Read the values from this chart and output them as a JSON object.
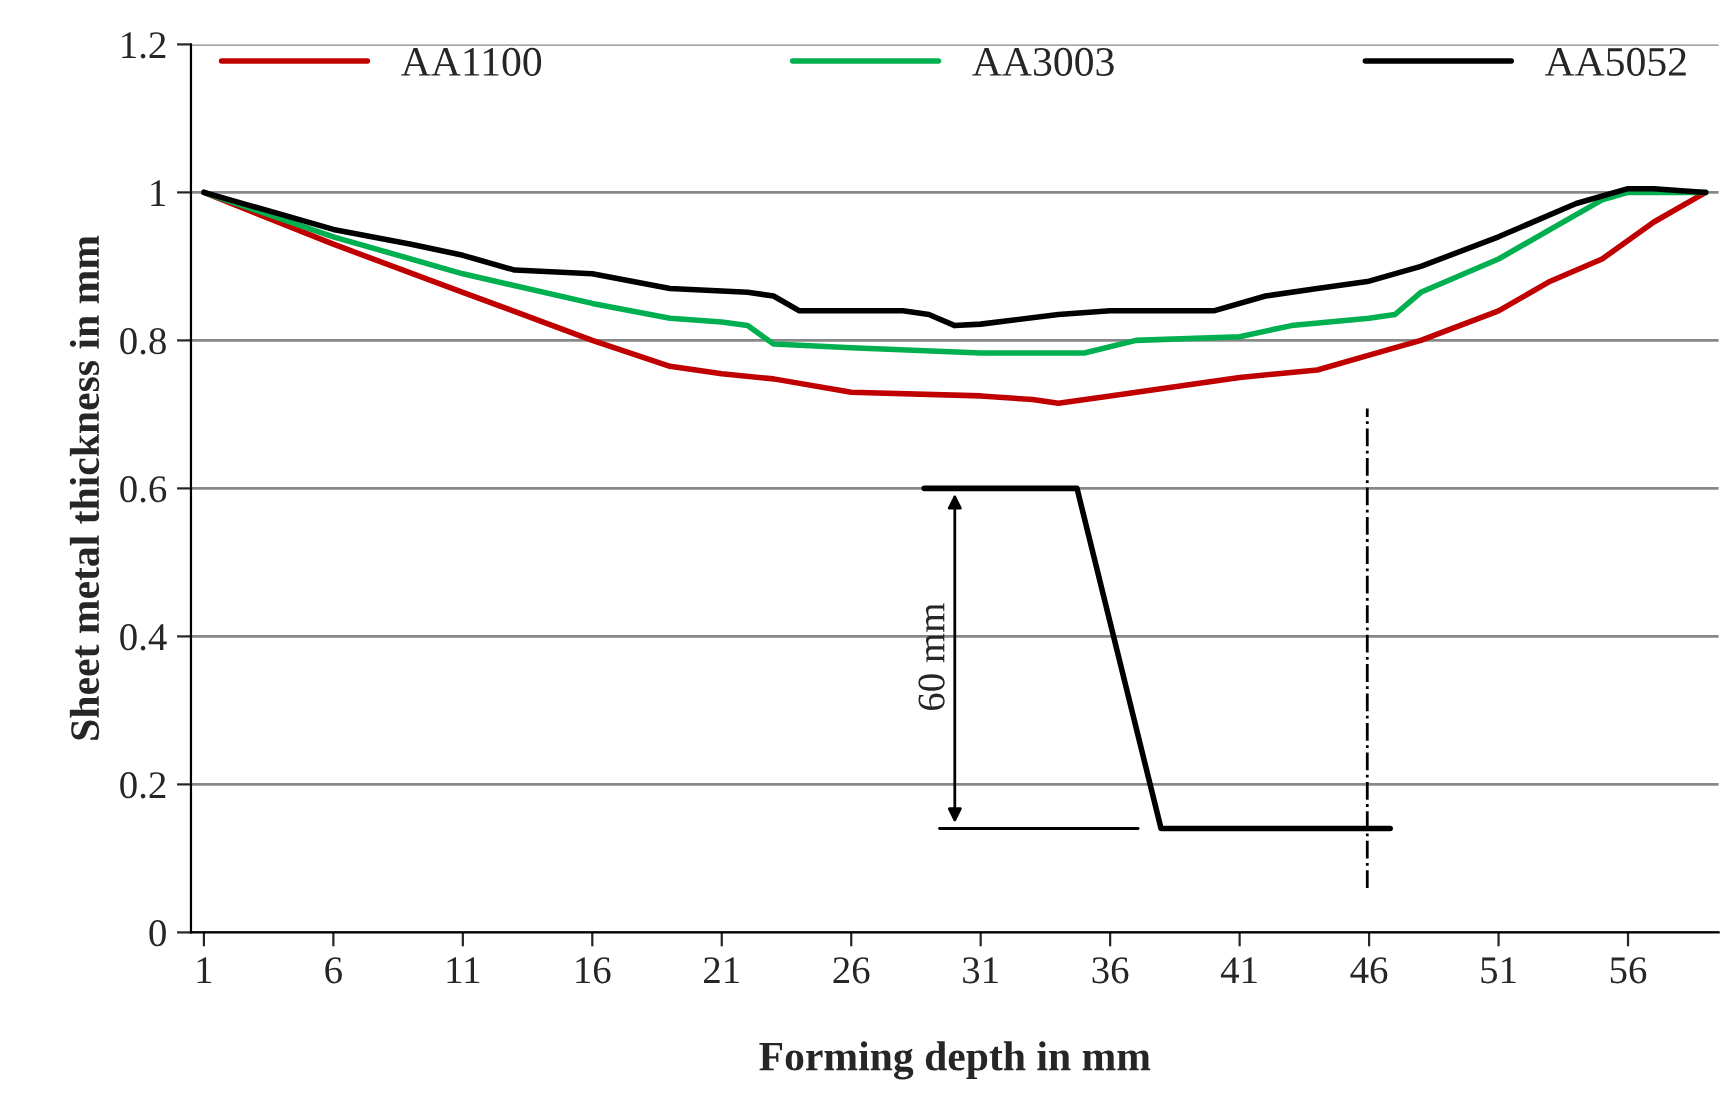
{
  "chart_data": {
    "type": "line",
    "xlabel": "Forming depth in mm",
    "ylabel": "Sheet metal thickness in mm",
    "xlim": [
      0.5,
      59.5
    ],
    "xticks": [
      1,
      6,
      11,
      16,
      21,
      26,
      31,
      36,
      41,
      46,
      51,
      56
    ],
    "ylim": [
      0,
      1.2
    ],
    "yticks": [
      0,
      0.2,
      0.4,
      0.6,
      0.8,
      1,
      1.2
    ],
    "grid": "y",
    "legend": "top",
    "marker": "none",
    "line_style": "solid",
    "annotations": [
      "60 mm"
    ],
    "series": [
      {
        "name": "AA1100",
        "color": "#c00000",
        "x": [
          1,
          6,
          11,
          16,
          19,
          21,
          23,
          26,
          31,
          33,
          34,
          36,
          41,
          44,
          46,
          48,
          51,
          53,
          55,
          57,
          59
        ],
        "values": [
          1.0,
          0.93,
          0.865,
          0.8,
          0.765,
          0.755,
          0.748,
          0.73,
          0.725,
          0.72,
          0.715,
          0.725,
          0.75,
          0.76,
          0.78,
          0.8,
          0.84,
          0.88,
          0.91,
          0.96,
          1.0
        ]
      },
      {
        "name": "AA3003",
        "color": "#00b050",
        "x": [
          1,
          6,
          11,
          16,
          19,
          21,
          22,
          23,
          26,
          31,
          35,
          37,
          41,
          43,
          46,
          47,
          48,
          51,
          53,
          55,
          56,
          59
        ],
        "values": [
          1.0,
          0.94,
          0.89,
          0.85,
          0.83,
          0.825,
          0.82,
          0.795,
          0.79,
          0.783,
          0.783,
          0.8,
          0.805,
          0.82,
          0.83,
          0.835,
          0.865,
          0.91,
          0.95,
          0.99,
          1.0,
          1.0
        ]
      },
      {
        "name": "AA5052",
        "color": "#000000",
        "x": [
          1,
          6,
          9,
          11,
          13,
          16,
          19,
          22,
          23,
          24,
          28,
          29,
          30,
          31,
          34,
          36,
          40,
          42,
          44,
          46,
          48,
          51,
          54,
          56,
          57,
          59
        ],
        "values": [
          1.0,
          0.95,
          0.93,
          0.915,
          0.895,
          0.89,
          0.87,
          0.865,
          0.86,
          0.84,
          0.84,
          0.835,
          0.82,
          0.822,
          0.835,
          0.84,
          0.84,
          0.86,
          0.87,
          0.88,
          0.9,
          0.94,
          0.985,
          1.005,
          1.005,
          1.0
        ]
      }
    ]
  }
}
